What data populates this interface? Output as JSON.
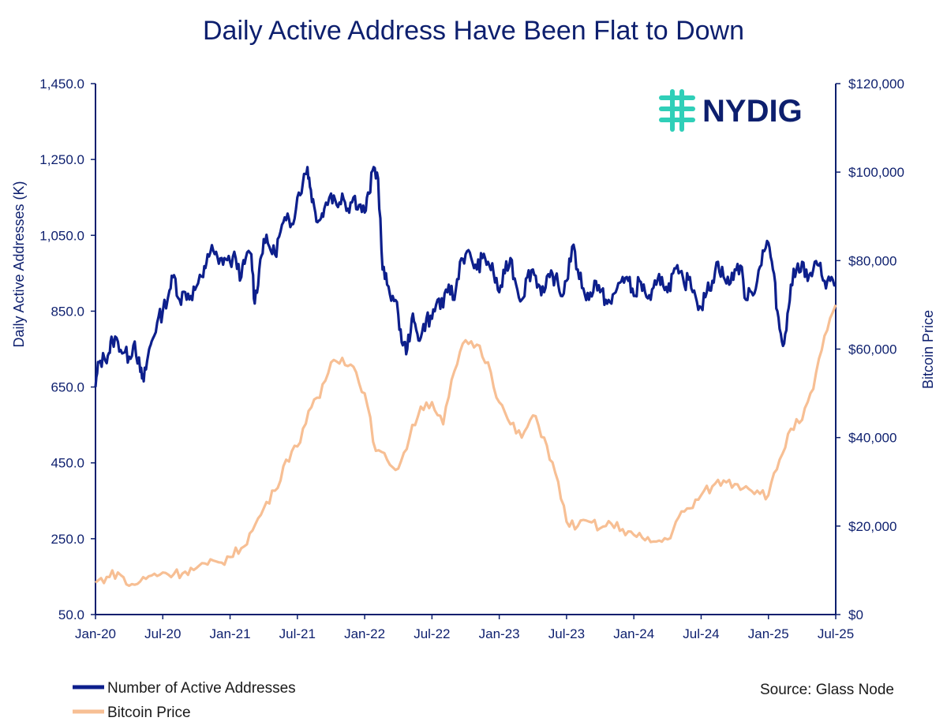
{
  "chart_data": {
    "type": "line",
    "title": "Daily Active Address Have Been Flat to Down",
    "ylabel": "Daily Active Addresses (K)",
    "y2label": "Bitcoin Price",
    "ylim": [
      50,
      1450
    ],
    "y2lim": [
      0,
      120000
    ],
    "yticks": [
      "1,450.0",
      "1,250.0",
      "1,050.0",
      "850.0",
      "650.0",
      "450.0",
      "250.0",
      "50.0"
    ],
    "y2ticks": [
      "$120,000",
      "$100,000",
      "$80,000",
      "$60,000",
      "$40,000",
      "$20,000",
      "$0"
    ],
    "xticks": [
      "Jan-20",
      "Jul-20",
      "Jan-21",
      "Jul-21",
      "Jan-22",
      "Jul-22",
      "Jan-23",
      "Jul-23",
      "Jan-24",
      "Jul-24",
      "Jan-25",
      "Jul-25"
    ],
    "x_range": [
      0,
      66
    ],
    "source": "Source: Glass Node",
    "logo_text": "NYDIG",
    "series": [
      {
        "name": "Number of Active Addresses",
        "color": "#0d1f8c",
        "axis": "left",
        "points": [
          [
            0,
            650
          ],
          [
            0.3,
            715
          ],
          [
            0.8,
            725
          ],
          [
            1.2,
            740
          ],
          [
            1.5,
            775
          ],
          [
            2,
            770
          ],
          [
            2.5,
            740
          ],
          [
            3,
            730
          ],
          [
            3.5,
            770
          ],
          [
            4,
            690
          ],
          [
            4.3,
            665
          ],
          [
            4.7,
            735
          ],
          [
            5,
            770
          ],
          [
            5.5,
            820
          ],
          [
            6,
            850
          ],
          [
            6.6,
            905
          ],
          [
            7,
            945
          ],
          [
            7.5,
            880
          ],
          [
            8,
            900
          ],
          [
            8.5,
            890
          ],
          [
            9,
            915
          ],
          [
            9.6,
            940
          ],
          [
            10,
            1000
          ],
          [
            10.5,
            1010
          ],
          [
            11,
            975
          ],
          [
            11.5,
            990
          ],
          [
            12,
            980
          ],
          [
            12.5,
            990
          ],
          [
            13,
            940
          ],
          [
            13.4,
            990
          ],
          [
            13.9,
            1000
          ],
          [
            14.2,
            870
          ],
          [
            14.6,
            960
          ],
          [
            15,
            1040
          ],
          [
            15.5,
            1020
          ],
          [
            16,
            1000
          ],
          [
            16.5,
            1060
          ],
          [
            17,
            1090
          ],
          [
            17.5,
            1080
          ],
          [
            18,
            1150
          ],
          [
            18.5,
            1190
          ],
          [
            18.9,
            1230
          ],
          [
            19.2,
            1170
          ],
          [
            19.6,
            1110
          ],
          [
            20,
            1090
          ],
          [
            20.4,
            1120
          ],
          [
            21,
            1160
          ],
          [
            21.5,
            1130
          ],
          [
            22,
            1160
          ],
          [
            22.5,
            1120
          ],
          [
            23,
            1150
          ],
          [
            23.5,
            1130
          ],
          [
            24,
            1110
          ],
          [
            24.4,
            1160
          ],
          [
            24.8,
            1230
          ],
          [
            25.2,
            1200
          ],
          [
            25.6,
            960
          ],
          [
            26,
            920
          ],
          [
            26.5,
            890
          ],
          [
            27,
            840
          ],
          [
            27.4,
            760
          ],
          [
            27.8,
            750
          ],
          [
            28.2,
            830
          ],
          [
            28.6,
            800
          ],
          [
            29,
            780
          ],
          [
            29.5,
            830
          ],
          [
            30,
            830
          ],
          [
            30.5,
            880
          ],
          [
            31,
            860
          ],
          [
            31.5,
            920
          ],
          [
            32,
            880
          ],
          [
            32.5,
            980
          ],
          [
            33,
            1000
          ],
          [
            33.5,
            990
          ],
          [
            34,
            960
          ],
          [
            34.5,
            990
          ],
          [
            35,
            980
          ],
          [
            35.5,
            950
          ],
          [
            36,
            900
          ],
          [
            36.5,
            950
          ],
          [
            37,
            990
          ],
          [
            37.5,
            920
          ],
          [
            38,
            880
          ],
          [
            38.5,
            940
          ],
          [
            39,
            960
          ],
          [
            39.5,
            920
          ],
          [
            40,
            900
          ],
          [
            40.5,
            940
          ],
          [
            41,
            940
          ],
          [
            41.5,
            890
          ],
          [
            42,
            930
          ],
          [
            42.5,
            1020
          ],
          [
            43,
            960
          ],
          [
            43.5,
            910
          ],
          [
            44,
            880
          ],
          [
            44.5,
            930
          ],
          [
            45,
            900
          ],
          [
            45.5,
            880
          ],
          [
            46,
            870
          ],
          [
            46.5,
            910
          ],
          [
            47,
            940
          ],
          [
            47.5,
            930
          ],
          [
            48,
            890
          ],
          [
            48.5,
            930
          ],
          [
            49,
            900
          ],
          [
            49.5,
            880
          ],
          [
            50,
            920
          ],
          [
            50.5,
            940
          ],
          [
            51,
            900
          ],
          [
            51.5,
            950
          ],
          [
            52,
            950
          ],
          [
            52.5,
            920
          ],
          [
            53,
            940
          ],
          [
            53.5,
            890
          ],
          [
            54,
            860
          ],
          [
            54.5,
            900
          ],
          [
            55,
            930
          ],
          [
            55.5,
            980
          ],
          [
            56,
            940
          ],
          [
            56.5,
            920
          ],
          [
            57,
            960
          ],
          [
            57.5,
            970
          ],
          [
            58,
            880
          ],
          [
            58.5,
            900
          ],
          [
            59,
            930
          ],
          [
            59.5,
            1010
          ],
          [
            60,
            1030
          ],
          [
            60.4,
            960
          ],
          [
            60.8,
            850
          ],
          [
            61.2,
            770
          ],
          [
            61.6,
            800
          ],
          [
            62,
            920
          ],
          [
            62.5,
            960
          ],
          [
            63,
            980
          ],
          [
            63.5,
            930
          ],
          [
            64,
            960
          ],
          [
            64.5,
            970
          ],
          [
            65,
            930
          ],
          [
            65.5,
            930
          ],
          [
            66,
            920
          ]
        ]
      },
      {
        "name": "Bitcoin Price",
        "color": "#f7bf94",
        "axis": "right",
        "points": [
          [
            0,
            7200
          ],
          [
            1,
            8500
          ],
          [
            2,
            9500
          ],
          [
            3,
            6500
          ],
          [
            4,
            7500
          ],
          [
            5,
            8800
          ],
          [
            6,
            9500
          ],
          [
            7,
            9200
          ],
          [
            8,
            9700
          ],
          [
            9,
            10500
          ],
          [
            10,
            11300
          ],
          [
            11,
            11800
          ],
          [
            12,
            13000
          ],
          [
            13,
            15000
          ],
          [
            14,
            19000
          ],
          [
            15,
            24000
          ],
          [
            16,
            28000
          ],
          [
            17,
            35000
          ],
          [
            18,
            38000
          ],
          [
            19,
            46000
          ],
          [
            20,
            49000
          ],
          [
            21,
            57000
          ],
          [
            22,
            58000
          ],
          [
            23,
            56000
          ],
          [
            24,
            50000
          ],
          [
            25,
            37000
          ],
          [
            26,
            35000
          ],
          [
            27,
            33000
          ],
          [
            28,
            40000
          ],
          [
            29,
            47000
          ],
          [
            30,
            48000
          ],
          [
            31,
            43000
          ],
          [
            32,
            55000
          ],
          [
            33,
            62000
          ],
          [
            34,
            61000
          ],
          [
            35,
            57000
          ],
          [
            36,
            48000
          ],
          [
            37,
            43000
          ],
          [
            38,
            40000
          ],
          [
            39,
            45000
          ],
          [
            40,
            40000
          ],
          [
            41,
            32000
          ],
          [
            42,
            21000
          ],
          [
            43,
            20000
          ],
          [
            44,
            21000
          ],
          [
            45,
            19500
          ],
          [
            46,
            20500
          ],
          [
            47,
            19300
          ],
          [
            48,
            18000
          ],
          [
            49,
            16800
          ],
          [
            50,
            16500
          ],
          [
            51,
            17000
          ],
          [
            52,
            22000
          ],
          [
            53,
            24000
          ],
          [
            54,
            27000
          ],
          [
            55,
            29000
          ],
          [
            56,
            30300
          ],
          [
            57,
            29500
          ],
          [
            58,
            29000
          ],
          [
            59,
            28000
          ],
          [
            60,
            27000
          ],
          [
            61,
            35000
          ],
          [
            62,
            42000
          ],
          [
            63,
            44000
          ],
          [
            64,
            51000
          ],
          [
            65,
            63000
          ],
          [
            66,
            70000
          ]
        ]
      }
    ]
  },
  "legend": {
    "items": [
      {
        "label": "Number of Active Addresses",
        "color": "#0d1f8c"
      },
      {
        "label": "Bitcoin Price",
        "color": "#f7bf94"
      }
    ]
  }
}
